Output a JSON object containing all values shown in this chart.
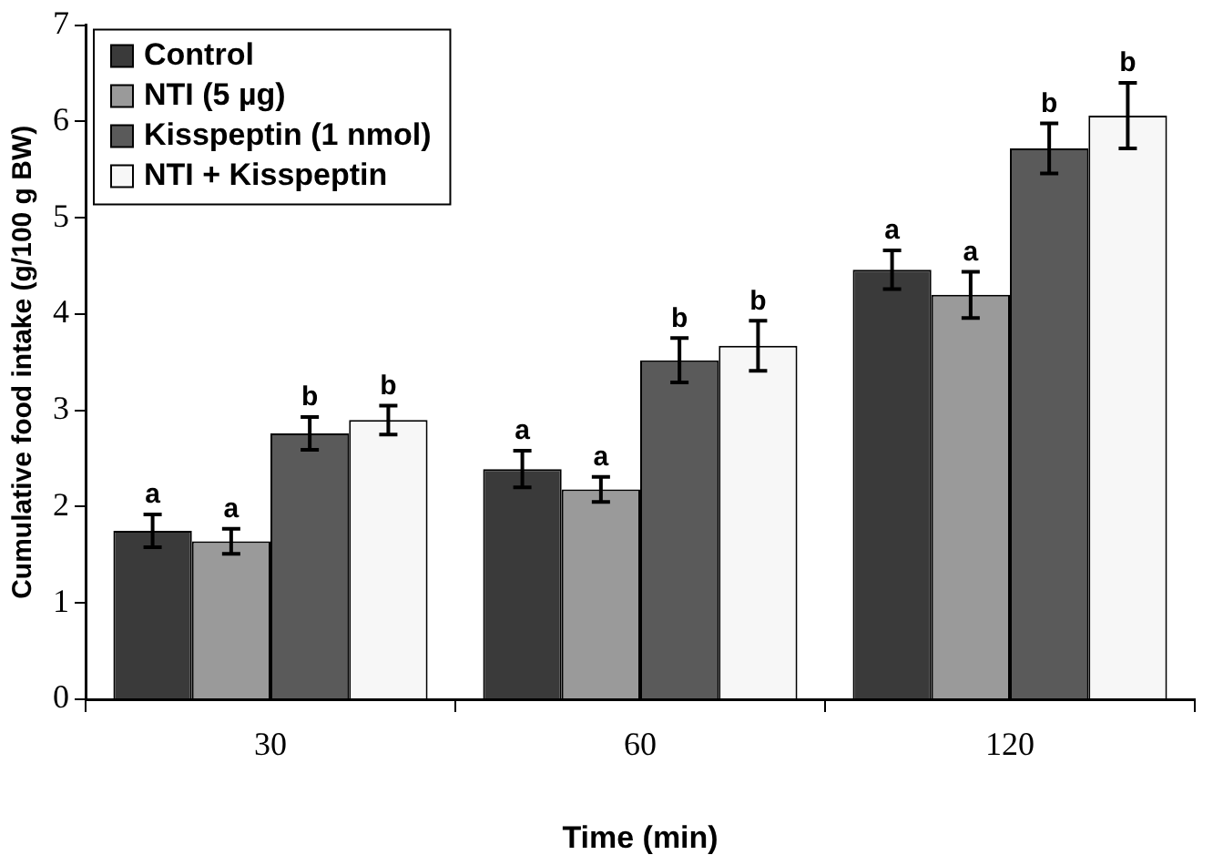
{
  "chart_data": {
    "type": "bar",
    "xlabel": "Time (min)",
    "ylabel": "Cumulative food intake (g/100 g BW)",
    "categories": [
      "30",
      "60",
      "120"
    ],
    "series": [
      {
        "name": "Control",
        "color": "#3a3a3a",
        "values": [
          1.75,
          2.39,
          4.46
        ],
        "errors": [
          0.17,
          0.19,
          0.2
        ],
        "value_labels": [
          "a",
          "a",
          "a"
        ]
      },
      {
        "name": "NTI (5 µg)",
        "color": "#9a9a9a",
        "values": [
          1.64,
          2.18,
          4.2
        ],
        "errors": [
          0.13,
          0.13,
          0.24
        ],
        "value_labels": [
          "a",
          "a",
          "a"
        ]
      },
      {
        "name": "Kisspeptin (1 nmol)",
        "color": "#5a5a5a",
        "values": [
          2.76,
          3.52,
          5.72
        ],
        "errors": [
          0.17,
          0.23,
          0.26
        ],
        "value_labels": [
          "b",
          "b",
          "b"
        ]
      },
      {
        "name": "NTI + Kisspeptin",
        "color": "#f7f7f7",
        "values": [
          2.9,
          3.67,
          6.06
        ],
        "errors": [
          0.15,
          0.26,
          0.34
        ],
        "value_labels": [
          "b",
          "b",
          "b"
        ]
      }
    ],
    "ylim": [
      0,
      7
    ],
    "yticks": [
      0,
      1,
      2,
      3,
      4,
      5,
      6,
      7
    ],
    "grid": false,
    "legend": "top left"
  }
}
